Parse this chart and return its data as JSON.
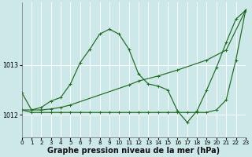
{
  "bg_color": "#cce8e8",
  "grid_color": "#ffffff",
  "line_color": "#1e6b1e",
  "title": "Graphe pression niveau de la mer (hPa)",
  "xlim": [
    0,
    23
  ],
  "ylim": [
    1011.55,
    1014.25
  ],
  "xticks": [
    0,
    1,
    2,
    3,
    4,
    5,
    6,
    7,
    8,
    9,
    10,
    11,
    12,
    13,
    14,
    15,
    16,
    17,
    18,
    19,
    20,
    21,
    22,
    23
  ],
  "yticks": [
    1012,
    1013
  ],
  "title_fontsize": 7.0,
  "tick_fontsize": 5.2,
  "line_width": 0.85,
  "marker_size": 2.5,
  "series_wavy_x": [
    0,
    1,
    2,
    3,
    4,
    5,
    6,
    7,
    8,
    9,
    10,
    11,
    12,
    13,
    14,
    15,
    16,
    17,
    18,
    19,
    20,
    21,
    22,
    23
  ],
  "series_wavy_y": [
    1012.45,
    1012.1,
    1012.15,
    1012.28,
    1012.35,
    1012.62,
    1013.05,
    1013.32,
    1013.62,
    1013.72,
    1013.62,
    1013.32,
    1012.82,
    1012.62,
    1012.58,
    1012.5,
    1012.08,
    1011.85,
    1012.08,
    1012.5,
    1012.95,
    1013.45,
    1013.92,
    1014.1
  ],
  "series_diag_x": [
    0,
    2,
    3,
    4,
    5,
    11,
    12,
    14,
    16,
    19,
    21,
    23
  ],
  "series_diag_y": [
    1012.1,
    1012.1,
    1012.12,
    1012.15,
    1012.2,
    1012.6,
    1012.68,
    1012.78,
    1012.9,
    1013.1,
    1013.3,
    1014.1
  ],
  "series_flat_x": [
    0,
    1,
    2,
    3,
    4,
    5,
    6,
    7,
    8,
    9,
    10,
    11,
    12,
    13,
    14,
    15,
    16,
    17,
    18,
    19,
    20,
    21,
    22,
    23
  ],
  "series_flat_y": [
    1012.1,
    1012.05,
    1012.05,
    1012.05,
    1012.05,
    1012.05,
    1012.05,
    1012.05,
    1012.05,
    1012.05,
    1012.05,
    1012.05,
    1012.05,
    1012.05,
    1012.05,
    1012.05,
    1012.05,
    1012.05,
    1012.05,
    1012.05,
    1012.1,
    1012.3,
    1013.1,
    1014.1
  ]
}
